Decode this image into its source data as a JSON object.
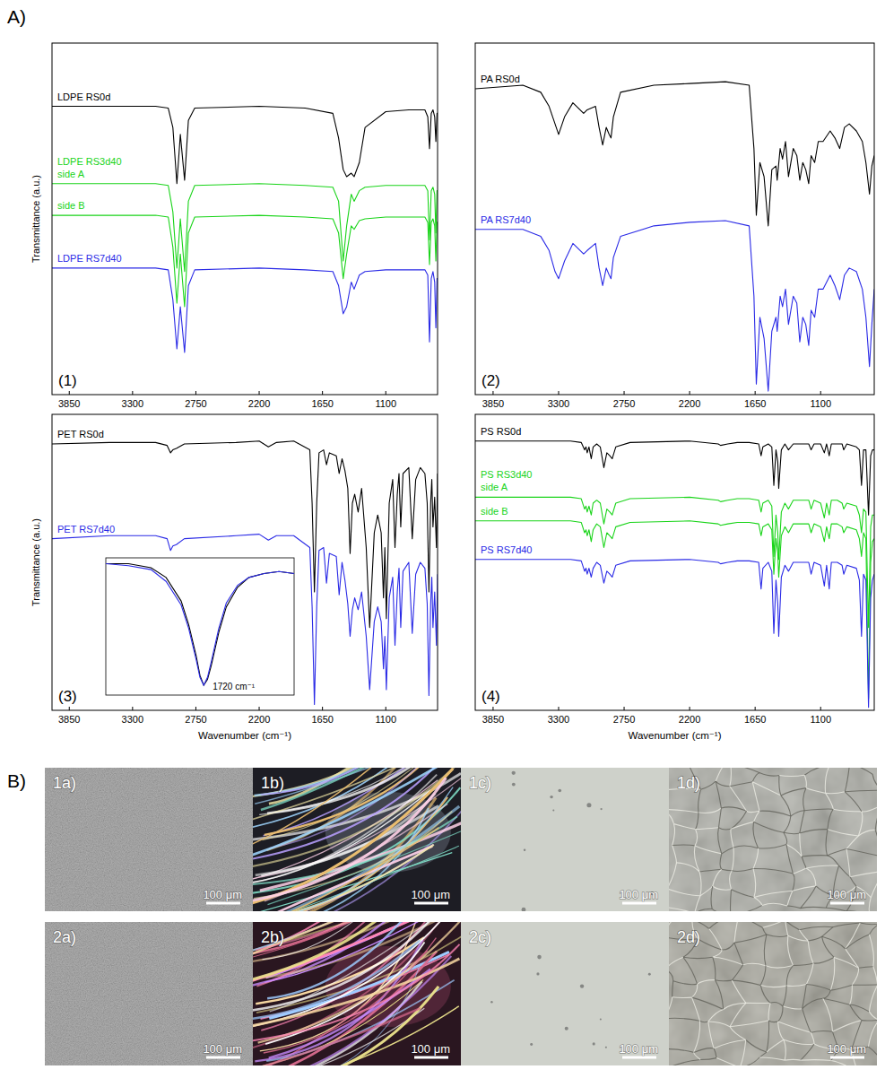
{
  "panel_labels": [
    "A)",
    "B)"
  ],
  "chart_data": [
    {
      "type": "line",
      "panel": "(1)",
      "y_label": "Transmittance (a.u.)",
      "xlim": [
        4000,
        650
      ],
      "xticks": [
        3850,
        3300,
        2750,
        2200,
        1650,
        1100
      ],
      "ylim": [
        0,
        100
      ],
      "tick_labels": "x",
      "grid": false,
      "x": [
        4000,
        3100,
        2990,
        2950,
        2915,
        2885,
        2848,
        2815,
        2760,
        2200,
        1800,
        1560,
        1510,
        1470,
        1440,
        1400,
        1375,
        1330,
        1280,
        1100,
        900,
        760,
        735,
        720,
        705,
        690,
        675,
        665,
        655,
        650
      ],
      "series": [
        {
          "name": "LDPE RS0d",
          "color": "#000000",
          "values": [
            82,
            82,
            81.5,
            76,
            60,
            74,
            61,
            78,
            81.5,
            82,
            81.5,
            80,
            73,
            64,
            62,
            63,
            62,
            66,
            76,
            80.5,
            81,
            81,
            79,
            70,
            80,
            81,
            79,
            72,
            80,
            80
          ]
        },
        {
          "name": "side A",
          "group": "LDPE RS3d40",
          "color": "#19d419",
          "values": [
            60,
            60,
            59.5,
            52,
            36,
            50,
            35,
            55,
            59.5,
            60,
            59.5,
            59,
            55,
            38,
            48,
            57,
            55,
            58,
            59,
            59.5,
            59.5,
            59.5,
            58,
            44,
            58,
            59,
            57,
            46,
            58,
            58
          ]
        },
        {
          "name": "side B",
          "color": "#19d419",
          "values": [
            51,
            51,
            50.5,
            42,
            26,
            40,
            25,
            46,
            50.5,
            51,
            50.5,
            50,
            46,
            33,
            40,
            48,
            47,
            49.5,
            50,
            50.5,
            50.5,
            50.5,
            49,
            37,
            49,
            50,
            48,
            38,
            49,
            49
          ]
        },
        {
          "name": "LDPE RS7d40",
          "color": "#2a2ae6",
          "values": [
            36,
            36,
            35.5,
            27,
            13,
            25,
            12,
            31,
            35.5,
            36,
            35.5,
            35,
            31,
            23,
            25,
            32,
            30,
            34,
            35,
            35.5,
            35.5,
            35.5,
            34,
            15,
            33,
            35,
            32,
            19,
            33,
            33
          ]
        }
      ]
    },
    {
      "type": "line",
      "panel": "(2)",
      "xlim": [
        4000,
        650
      ],
      "xticks": [
        3850,
        3300,
        2750,
        2200,
        1650,
        1100
      ],
      "ylim": [
        0,
        100
      ],
      "tick_labels": "x",
      "grid": false,
      "x": [
        4000,
        3600,
        3450,
        3380,
        3330,
        3300,
        3250,
        3180,
        3090,
        3060,
        2990,
        2960,
        2930,
        2900,
        2875,
        2860,
        2840,
        2780,
        2500,
        2200,
        1900,
        1700,
        1660,
        1640,
        1610,
        1575,
        1540,
        1510,
        1475,
        1465,
        1440,
        1420,
        1395,
        1370,
        1330,
        1300,
        1275,
        1250,
        1225,
        1200,
        1180,
        1150,
        1120,
        1080,
        1020,
        980,
        940,
        900,
        860,
        800,
        750,
        720,
        690,
        670,
        650
      ],
      "series": [
        {
          "name": "PA RS0d",
          "color": "#000000",
          "values": [
            87,
            88,
            86,
            82,
            77,
            74,
            79,
            83,
            80,
            81,
            82,
            76,
            71,
            76,
            74,
            73,
            79,
            86,
            88,
            88.5,
            89,
            88,
            70,
            51,
            66,
            62,
            48,
            64,
            65,
            61,
            70,
            67,
            72,
            62,
            70,
            68,
            61,
            66,
            64,
            60,
            68,
            66,
            72,
            72,
            75,
            73,
            70,
            76,
            77,
            75,
            72,
            66,
            57,
            65,
            68
          ]
        },
        {
          "name": "PA RS7d40",
          "color": "#2a2ae6",
          "values": [
            47,
            47,
            45,
            41,
            35,
            33,
            38,
            43,
            40,
            41,
            43,
            36,
            31,
            36,
            34,
            33,
            39,
            45,
            48,
            49,
            49.5,
            48,
            28,
            3,
            22,
            16,
            1,
            18,
            22,
            18,
            28,
            25,
            30,
            20,
            28,
            26,
            15,
            22,
            20,
            14,
            24,
            22,
            30,
            30,
            34,
            31,
            27,
            34,
            36,
            35,
            30,
            22,
            8,
            20,
            30
          ]
        }
      ]
    },
    {
      "type": "line",
      "panel": "(3)",
      "y_label": "Transmittance (a.u.)",
      "x_label": "Wavenumber (cm⁻¹)",
      "xlim": [
        4000,
        650
      ],
      "xticks": [
        3850,
        3300,
        2750,
        2200,
        1650,
        1100
      ],
      "ylim": [
        0,
        100
      ],
      "tick_labels": "x",
      "grid": false,
      "x": [
        4000,
        3500,
        3100,
        3000,
        2970,
        2950,
        2920,
        2850,
        2400,
        2200,
        2120,
        2050,
        1900,
        1760,
        1740,
        1720,
        1700,
        1680,
        1640,
        1615,
        1590,
        1530,
        1505,
        1480,
        1455,
        1430,
        1410,
        1390,
        1370,
        1340,
        1310,
        1270,
        1240,
        1200,
        1170,
        1140,
        1120,
        1108,
        1095,
        1070,
        1040,
        1020,
        1000,
        985,
        970,
        950,
        900,
        870,
        840,
        800,
        760,
        740,
        725,
        710,
        700,
        690,
        675,
        660,
        650
      ],
      "series": [
        {
          "name": "PET RS0d",
          "color": "#000000",
          "values": [
            90,
            90.5,
            90.5,
            89.5,
            87,
            88,
            88.5,
            90,
            90.5,
            91,
            89,
            90.5,
            91,
            88,
            70,
            40,
            70,
            87,
            88,
            83,
            87,
            86,
            80,
            85,
            81,
            75,
            53,
            70,
            73,
            67,
            75,
            55,
            28,
            60,
            66,
            60,
            38,
            55,
            31,
            70,
            78,
            55,
            73,
            80,
            62,
            80,
            82,
            58,
            78,
            82,
            80,
            70,
            40,
            70,
            78,
            62,
            72,
            55,
            80
          ]
        },
        {
          "name": "PET RS7d40",
          "color": "#2a2ae6",
          "values": [
            58,
            59,
            59,
            58,
            54,
            55.5,
            56,
            58,
            59,
            59.5,
            57.5,
            59,
            59,
            55,
            35,
            2,
            35,
            54,
            55,
            43,
            53,
            52,
            39,
            50,
            44,
            36,
            25,
            34,
            38,
            34,
            40,
            25,
            7,
            30,
            35,
            30,
            14,
            25,
            7,
            38,
            45,
            22,
            40,
            48,
            28,
            47,
            50,
            26,
            46,
            50,
            48,
            36,
            5,
            36,
            45,
            28,
            40,
            22,
            46
          ]
        }
      ],
      "inset": {
        "type": "line",
        "annotation": "1720 cm⁻¹",
        "xlim": [
          1850,
          1600
        ],
        "ylim": [
          30,
          100
        ],
        "tick_labels": false,
        "x": [
          1850,
          1820,
          1790,
          1770,
          1750,
          1740,
          1730,
          1725,
          1720,
          1715,
          1710,
          1700,
          1690,
          1675,
          1660,
          1640,
          1620,
          1600
        ],
        "series": [
          {
            "color": "#000000",
            "values": [
              97,
              97,
              95,
              90,
              78,
              66,
              50,
              40,
              35,
              38,
              45,
              62,
              75,
              85,
              90,
              92,
              93,
              92
            ]
          },
          {
            "color": "#2a2ae6",
            "values": [
              97,
              96,
              94,
              88,
              76,
              64,
              48,
              39,
              35,
              39,
              47,
              64,
              77,
              86,
              90,
              92,
              93,
              92
            ]
          }
        ]
      }
    },
    {
      "type": "line",
      "panel": "(4)",
      "x_label": "Wavenumber (cm⁻¹)",
      "xlim": [
        4000,
        650
      ],
      "xticks": [
        3850,
        3300,
        2750,
        2200,
        1650,
        1100
      ],
      "ylim": [
        0,
        100
      ],
      "tick_labels": "x",
      "grid": false,
      "x": [
        4000,
        3200,
        3110,
        3082,
        3070,
        3060,
        3045,
        3026,
        3010,
        2980,
        2950,
        2920,
        2895,
        2870,
        2850,
        2820,
        2700,
        2200,
        1960,
        1940,
        1880,
        1800,
        1700,
        1620,
        1600,
        1585,
        1540,
        1510,
        1493,
        1475,
        1460,
        1452,
        1430,
        1400,
        1370,
        1330,
        1200,
        1180,
        1155,
        1100,
        1069,
        1050,
        1028,
        1010,
        960,
        920,
        906,
        880,
        800,
        775,
        757,
        740,
        720,
        698,
        680,
        665,
        650
      ],
      "series": [
        {
          "name": "PS RS0d",
          "color": "#000000",
          "values": [
            91,
            91,
            90.5,
            88,
            89,
            87,
            89,
            85,
            89,
            90,
            89,
            82,
            87,
            86,
            85,
            89,
            90.5,
            91,
            90,
            89.5,
            90,
            90.5,
            90.5,
            90,
            86,
            89,
            90,
            89,
            76,
            88,
            84,
            75,
            88,
            90,
            88,
            90,
            90,
            88,
            90,
            90,
            87,
            90,
            86,
            90,
            90,
            90,
            88,
            90,
            89,
            88,
            76,
            88,
            88,
            66,
            86,
            88,
            88
          ]
        },
        {
          "name": "side A",
          "group": "PS RS3d40",
          "color": "#19d419",
          "values": [
            72,
            72,
            71.5,
            68,
            69,
            67,
            69,
            66,
            70,
            71,
            70,
            63,
            68,
            67,
            66,
            70,
            71.5,
            72,
            71,
            70.5,
            71,
            71.5,
            71.5,
            71,
            67,
            70,
            71,
            69,
            52,
            66,
            60,
            51,
            67,
            70,
            68,
            71,
            71,
            68,
            71,
            70,
            65,
            70,
            66,
            71,
            71,
            70,
            68,
            70,
            69,
            66,
            60,
            68,
            67,
            28,
            62,
            66,
            66
          ]
        },
        {
          "name": "side B",
          "color": "#19d419",
          "values": [
            64,
            64,
            63.5,
            60,
            61,
            59,
            61,
            57,
            61,
            63,
            62,
            55,
            60,
            59,
            58,
            62,
            63.5,
            64,
            63,
            62.5,
            63,
            63.5,
            63.5,
            63,
            59,
            62,
            63,
            61,
            46,
            58,
            53,
            45,
            59,
            62,
            60,
            63,
            63,
            60,
            63,
            62,
            57,
            62,
            58,
            63,
            63,
            62,
            60,
            62,
            61,
            58,
            52,
            60,
            58,
            4,
            50,
            57,
            58
          ]
        },
        {
          "name": "PS RS7d40",
          "color": "#2a2ae6",
          "values": [
            51,
            51,
            50.5,
            47,
            48,
            46,
            48,
            45,
            48,
            50,
            49,
            43,
            47,
            46,
            45,
            49,
            50.5,
            51,
            50,
            49.5,
            50,
            50.5,
            50.5,
            50,
            41,
            48,
            50,
            47,
            26,
            44,
            36,
            25,
            45,
            49,
            47,
            50,
            50,
            46,
            50,
            49,
            42,
            49,
            41,
            50,
            50,
            49,
            46,
            49,
            48,
            44,
            25,
            46,
            44,
            1,
            38,
            44,
            46
          ]
        }
      ]
    }
  ],
  "micrographs": [
    {
      "label": "1a)",
      "scale": "100 μm"
    },
    {
      "label": "1b)",
      "scale": "100 μm"
    },
    {
      "label": "1c)",
      "scale": "100 μm"
    },
    {
      "label": "1d)",
      "scale": "100 μm"
    },
    {
      "label": "2a)",
      "scale": "100 μm"
    },
    {
      "label": "2b)",
      "scale": "100 μm"
    },
    {
      "label": "2c)",
      "scale": "100 μm"
    },
    {
      "label": "2d)",
      "scale": "100 μm"
    }
  ]
}
